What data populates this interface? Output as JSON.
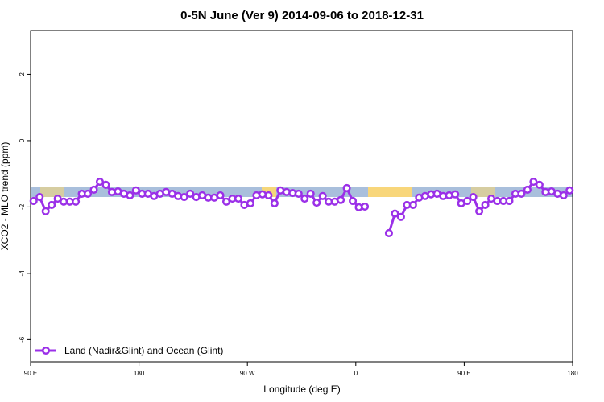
{
  "chart_data": {
    "type": "line",
    "title": "0-5N June (Ver 9)   2014-09-06 to 2018-12-31",
    "xlabel": "Longitude (deg E)",
    "ylabel": "XCO2 - MLO trend (ppm)",
    "xlim": [
      90,
      540
    ],
    "ylim": [
      -6.67,
      3.32
    ],
    "xticks": [
      {
        "value": 90,
        "label": "90 E"
      },
      180,
      {
        "value": 270,
        "label": "90 W"
      },
      {
        "value": 360,
        "label": "0"
      },
      {
        "value": 450,
        "label": "90 E"
      },
      {
        "value": 540,
        "label": "180"
      }
    ],
    "yticks": [
      2,
      0,
      -2,
      -4,
      -6
    ],
    "legend": "bottom-left",
    "x": [
      92.5,
      97.5,
      102.5,
      107.5,
      112.5,
      117.5,
      122.5,
      127.5,
      132.5,
      137.5,
      142.5,
      147.5,
      152.5,
      157.5,
      162.5,
      167.5,
      172.5,
      177.5,
      182.5,
      187.5,
      192.5,
      197.5,
      202.5,
      207.5,
      212.5,
      217.5,
      222.5,
      227.5,
      232.5,
      237.5,
      242.5,
      247.5,
      252.5,
      257.5,
      262.5,
      267.5,
      272.5,
      277.5,
      282.5,
      287.5,
      292.5,
      297.5,
      302.5,
      307.5,
      312.5,
      317.5,
      322.5,
      327.5,
      332.5,
      337.5,
      342.5,
      347.5,
      352.5,
      357.5,
      362.5,
      367.5,
      372.5,
      377.5,
      382.5,
      387.5,
      392.5,
      397.5,
      402.5,
      407.5,
      412.5,
      417.5,
      422.5,
      427.5,
      432.5,
      437.5,
      442.5,
      447.5,
      452.5,
      457.5,
      462.5,
      467.5,
      472.5,
      477.5,
      482.5,
      487.5,
      492.5,
      497.5,
      502.5,
      507.5,
      512.5,
      517.5,
      522.5,
      527.5,
      532.5,
      537.5
    ],
    "series": [
      {
        "name": "Land (Nadir&Glint) and Ocean (Glint)",
        "color": "#9b30e8",
        "values": [
          -1.82,
          -1.7,
          -2.13,
          -1.94,
          -1.75,
          -1.84,
          -1.84,
          -1.84,
          -1.6,
          -1.6,
          -1.48,
          -1.24,
          -1.33,
          -1.55,
          -1.53,
          -1.6,
          -1.65,
          -1.5,
          -1.6,
          -1.6,
          -1.67,
          -1.6,
          -1.55,
          -1.6,
          -1.67,
          -1.7,
          -1.6,
          -1.7,
          -1.65,
          -1.72,
          -1.72,
          -1.65,
          -1.84,
          -1.75,
          -1.75,
          -1.94,
          -1.89,
          -1.65,
          -1.62,
          -1.65,
          -1.89,
          -1.5,
          -1.55,
          -1.58,
          -1.6,
          -1.75,
          -1.6,
          -1.87,
          -1.67,
          -1.84,
          -1.84,
          -1.79,
          -1.43,
          -1.82,
          -2.01,
          -1.99,
          null,
          null,
          null,
          -2.79,
          -2.2,
          -2.3,
          -1.94,
          -1.94,
          -1.72,
          -1.67,
          -1.62,
          -1.6,
          -1.67,
          -1.65,
          -1.62,
          -1.89,
          -1.82,
          -1.7,
          -2.13,
          -1.94,
          -1.75,
          -1.82,
          -1.82,
          -1.82,
          -1.6,
          -1.6,
          -1.48,
          -1.24,
          -1.33,
          -1.55,
          -1.53,
          -1.6,
          -1.65,
          -1.5
        ]
      }
    ]
  }
}
